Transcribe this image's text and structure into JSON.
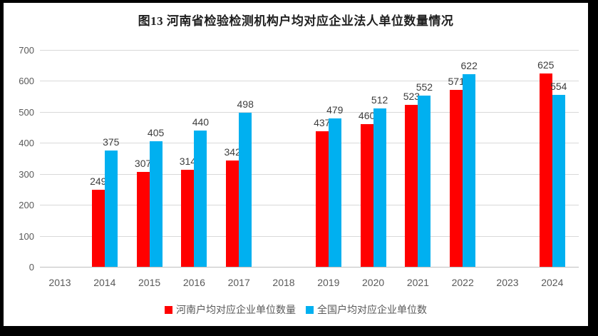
{
  "chart_data": {
    "type": "bar",
    "title": "图13 河南省检验检测机构户均对应企业法人单位数量情况",
    "categories": [
      "2013",
      "2014",
      "2015",
      "2016",
      "2017",
      "2018",
      "2019",
      "2020",
      "2021",
      "2022",
      "2023",
      "2024"
    ],
    "series": [
      {
        "name": "河南户均对应企业单位数量",
        "color": "#FF0000",
        "values": [
          null,
          249,
          307,
          314,
          342,
          null,
          437,
          460,
          523,
          571,
          null,
          625
        ]
      },
      {
        "name": "全国户均对应企业单位数",
        "color": "#00B0F0",
        "values": [
          null,
          375,
          405,
          440,
          498,
          null,
          479,
          512,
          552,
          622,
          null,
          554
        ]
      }
    ],
    "ylim": [
      0,
      700
    ],
    "yticks": [
      0,
      100,
      200,
      300,
      400,
      500,
      600,
      700
    ],
    "grid": "horizontal",
    "legend_position": "bottom",
    "data_labels": true
  },
  "colors": {
    "henan_series": "#FF0000",
    "national_series": "#00B0F0",
    "gridline": "#D9D9D9",
    "axis_line": "#BFBFBF",
    "tick_label": "#595959",
    "data_label": "#3D3D3D",
    "title": "#1F1F1F",
    "frame": "#000000",
    "background": "#FFFFFF"
  }
}
